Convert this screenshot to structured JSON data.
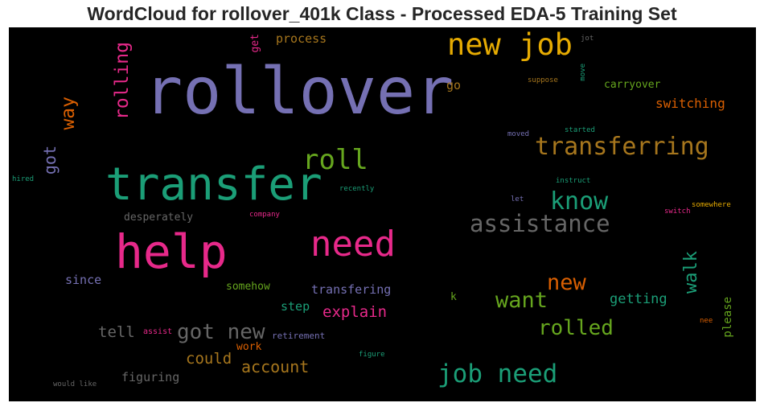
{
  "chart_data": {
    "type": "wordcloud",
    "title": "WordCloud for rollover_401k Class - Processed EDA-5 Training Set",
    "background": "#000000",
    "words": [
      {
        "text": "rollover",
        "color": "#7570b3",
        "vertical": false
      },
      {
        "text": "transfer",
        "color": "#1b9e77",
        "vertical": false
      },
      {
        "text": "new job",
        "color": "#e6ab02",
        "vertical": false
      },
      {
        "text": "help",
        "color": "#e7298a",
        "vertical": false
      },
      {
        "text": "need",
        "color": "#e7298a",
        "vertical": false
      },
      {
        "text": "transferring",
        "color": "#a6761d",
        "vertical": false
      },
      {
        "text": "roll",
        "color": "#66a61e",
        "vertical": false
      },
      {
        "text": "assistance",
        "color": "#666666",
        "vertical": false
      },
      {
        "text": "job need",
        "color": "#1b9e77",
        "vertical": false
      },
      {
        "text": "know",
        "color": "#1b9e77",
        "vertical": false
      },
      {
        "text": "rolling",
        "color": "#e7298a",
        "vertical": true
      },
      {
        "text": "got new",
        "color": "#666666",
        "vertical": false
      },
      {
        "text": "want",
        "color": "#66a61e",
        "vertical": false
      },
      {
        "text": "new",
        "color": "#d95f02",
        "vertical": false
      },
      {
        "text": "rolled",
        "color": "#66a61e",
        "vertical": false
      },
      {
        "text": "walk",
        "color": "#1b9e77",
        "vertical": true
      },
      {
        "text": "way",
        "color": "#d95f02",
        "vertical": true
      },
      {
        "text": "got",
        "color": "#7570b3",
        "vertical": true
      },
      {
        "text": "account",
        "color": "#a6761d",
        "vertical": false
      },
      {
        "text": "could",
        "color": "#a6761d",
        "vertical": false
      },
      {
        "text": "explain",
        "color": "#e7298a",
        "vertical": false
      },
      {
        "text": "tell",
        "color": "#666666",
        "vertical": false
      },
      {
        "text": "switching",
        "color": "#d95f02",
        "vertical": false
      },
      {
        "text": "getting",
        "color": "#1b9e77",
        "vertical": false
      },
      {
        "text": "transfering",
        "color": "#7570b3",
        "vertical": false
      },
      {
        "text": "since",
        "color": "#7570b3",
        "vertical": false
      },
      {
        "text": "figuring",
        "color": "#666666",
        "vertical": false
      },
      {
        "text": "process",
        "color": "#a6761d",
        "vertical": false
      },
      {
        "text": "desperately",
        "color": "#666666",
        "vertical": false
      },
      {
        "text": "step",
        "color": "#1b9e77",
        "vertical": false
      },
      {
        "text": "go",
        "color": "#a6761d",
        "vertical": false
      },
      {
        "text": "carryover",
        "color": "#66a61e",
        "vertical": false
      },
      {
        "text": "please",
        "color": "#66a61e",
        "vertical": true
      },
      {
        "text": "somehow",
        "color": "#66a61e",
        "vertical": false
      },
      {
        "text": "work",
        "color": "#d95f02",
        "vertical": false
      },
      {
        "text": "get",
        "color": "#e7298a",
        "vertical": true
      },
      {
        "text": "k",
        "color": "#66a61e",
        "vertical": false
      },
      {
        "text": "retirement",
        "color": "#7570b3",
        "vertical": false
      },
      {
        "text": "assist",
        "color": "#e7298a",
        "vertical": false
      },
      {
        "text": "suppose",
        "color": "#a6761d",
        "vertical": false
      },
      {
        "text": "started",
        "color": "#1b9e77",
        "vertical": false
      },
      {
        "text": "moved",
        "color": "#7570b3",
        "vertical": false
      },
      {
        "text": "instruct",
        "color": "#1b9e77",
        "vertical": false
      },
      {
        "text": "recently",
        "color": "#1b9e77",
        "vertical": false
      },
      {
        "text": "company",
        "color": "#e7298a",
        "vertical": false
      },
      {
        "text": "let",
        "color": "#7570b3",
        "vertical": false
      },
      {
        "text": "switch",
        "color": "#e7298a",
        "vertical": false
      },
      {
        "text": "somewhere",
        "color": "#e6ab02",
        "vertical": false
      },
      {
        "text": "hired",
        "color": "#1b9e77",
        "vertical": false
      },
      {
        "text": "figure",
        "color": "#1b9e77",
        "vertical": false
      },
      {
        "text": "would like",
        "color": "#666666",
        "vertical": false
      },
      {
        "text": "nee",
        "color": "#d95f02",
        "vertical": false
      },
      {
        "text": "jot",
        "color": "#666666",
        "vertical": false
      },
      {
        "text": "move",
        "color": "#1b9e77",
        "vertical": true
      }
    ]
  }
}
